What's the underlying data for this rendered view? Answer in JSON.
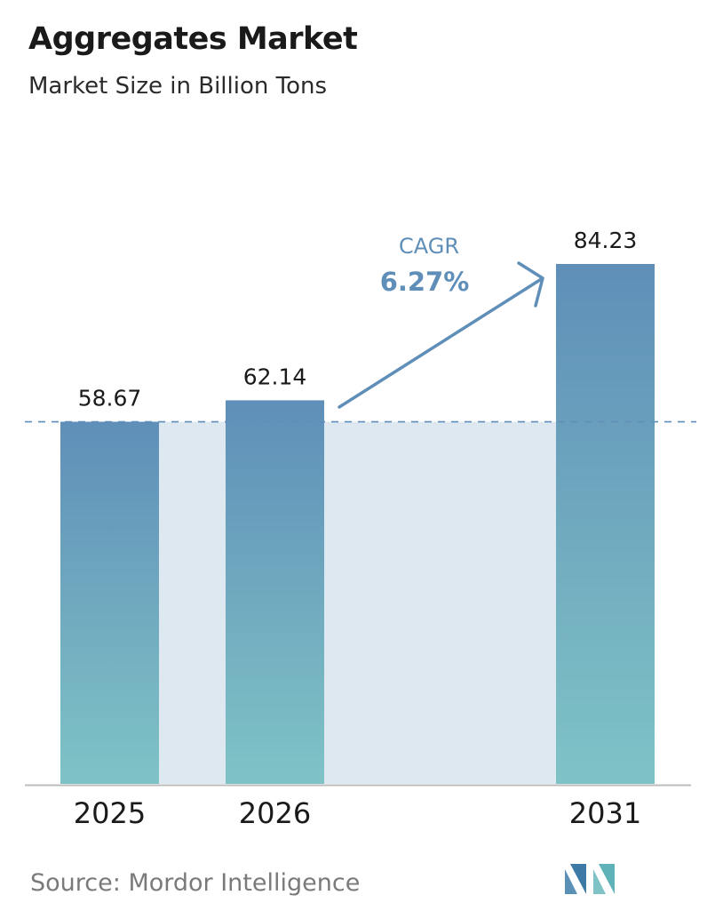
{
  "header": {
    "title": "Aggregates Market",
    "subtitle": "Market Size in Billion Tons"
  },
  "chart_data": {
    "type": "bar",
    "categories": [
      "2025",
      "2026",
      "2031"
    ],
    "values": [
      58.67,
      62.14,
      84.23
    ],
    "value_labels": [
      "58.67",
      "62.14",
      "84.23"
    ],
    "title": "Aggregates Market",
    "subtitle": "Market Size in Billion Tons",
    "xlabel": "",
    "ylabel": "",
    "ylim": [
      0,
      84.23
    ],
    "grid": false,
    "reference_line": 58.67,
    "annotation": {
      "label": "CAGR",
      "value": "6.27%"
    },
    "colors": {
      "bar_top": "#5f8fb8",
      "bar_bottom": "#7fc3c6",
      "band": "#dde8f1",
      "accent": "#5f8fb8",
      "axis": "#bdbdbd"
    }
  },
  "footer": {
    "source_label": "Source:",
    "source_name": "Mordor Intelligence",
    "logo_icon": "mordor-intelligence-logo"
  }
}
